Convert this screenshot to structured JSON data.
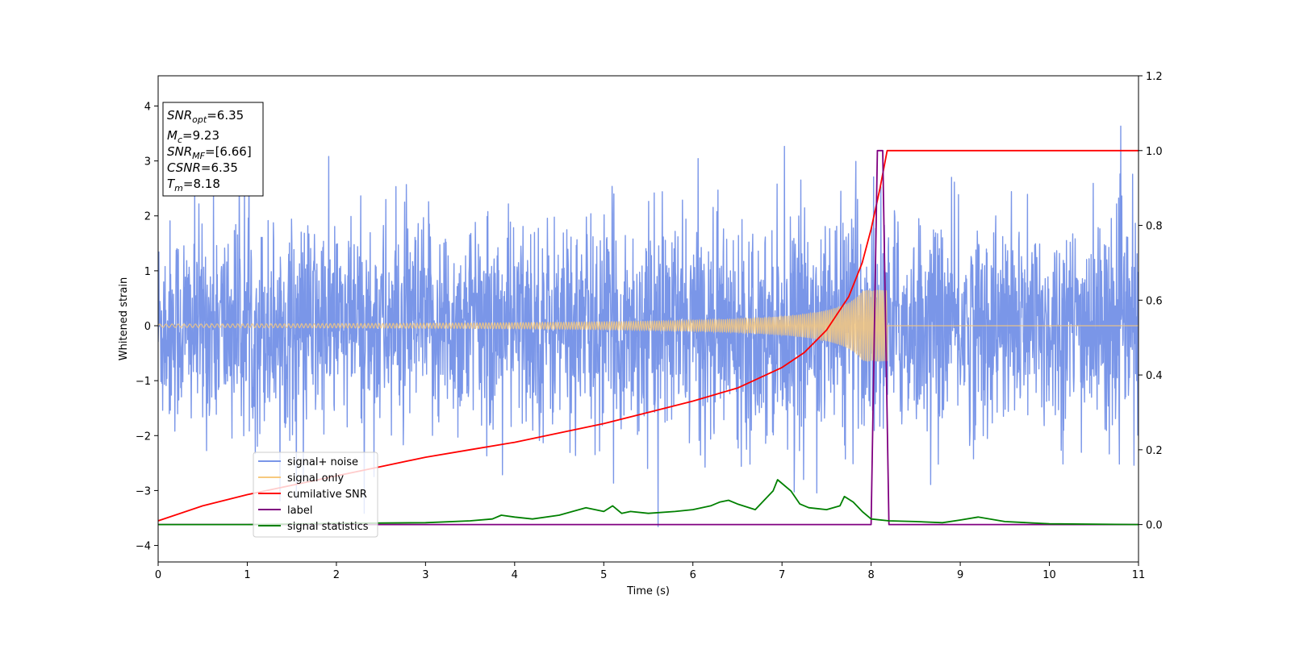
{
  "chart_data": {
    "type": "line",
    "title": "",
    "xlabel": "Time (s)",
    "ylabel": "Whitened strain",
    "y2label": "",
    "xlim": [
      0,
      11
    ],
    "ylim": [
      -4.3,
      4.55
    ],
    "y2lim": [
      -0.1,
      1.2
    ],
    "x_ticks": [
      0,
      1,
      2,
      3,
      4,
      5,
      6,
      7,
      8,
      9,
      10,
      11
    ],
    "y_ticks": [
      -4,
      -3,
      -2,
      -1,
      0,
      1,
      2,
      3,
      4
    ],
    "y2_ticks": [
      "0.0",
      "0.2",
      "0.4",
      "0.6",
      "0.8",
      "1.0",
      "1.2"
    ],
    "grid": false,
    "legend_position": "lower-left",
    "annotation": {
      "lines": [
        {
          "base": "SNR",
          "sub": "opt",
          "value": "=6.35"
        },
        {
          "base": "M",
          "sub": "c",
          "value": "=9.23"
        },
        {
          "base": "SNR",
          "sub": "MF",
          "value": "=[6.66]"
        },
        {
          "base": "CSNR",
          "sub": "",
          "value": "=6.35"
        },
        {
          "base": "T",
          "sub": "m",
          "value": "=8.18"
        }
      ]
    },
    "series": [
      {
        "name": "signal+ noise",
        "axis": "left",
        "color": "#7a96e8",
        "description_kind": "noise",
        "noise_sigma": 0.95,
        "sample_rate_hz": 256,
        "signal_merger_time": 8.18
      },
      {
        "name": "signal only",
        "axis": "left",
        "color": "#f7c97e",
        "description_kind": "chirp",
        "start_amplitude": 0.03,
        "peak_amplitude": 0.65,
        "end_time": 8.18
      },
      {
        "name": "cumilative SNR",
        "axis": "right",
        "color": "#ff0000",
        "x": [
          0,
          0.5,
          1,
          1.5,
          2,
          2.5,
          3,
          3.5,
          4,
          4.5,
          5,
          5.5,
          6,
          6.5,
          7,
          7.25,
          7.5,
          7.75,
          7.9,
          8.0,
          8.1,
          8.18,
          8.2,
          9,
          10,
          11
        ],
        "y": [
          0.01,
          0.05,
          0.08,
          0.105,
          0.13,
          0.155,
          0.18,
          0.2,
          0.22,
          0.245,
          0.27,
          0.3,
          0.33,
          0.365,
          0.42,
          0.46,
          0.52,
          0.61,
          0.7,
          0.79,
          0.9,
          1.0,
          1.0,
          1.0,
          1.0,
          1.0
        ]
      },
      {
        "name": "label",
        "axis": "right",
        "color": "#800080",
        "x": [
          0,
          8.0,
          8.07,
          8.13,
          8.2,
          11
        ],
        "y": [
          0,
          0,
          1,
          1,
          0,
          0
        ]
      },
      {
        "name": "signal statistics",
        "axis": "right",
        "color": "#008000",
        "x": [
          0,
          1,
          2,
          3,
          3.5,
          3.75,
          3.85,
          4.0,
          4.2,
          4.5,
          4.8,
          5.0,
          5.1,
          5.2,
          5.3,
          5.5,
          5.8,
          6.0,
          6.2,
          6.3,
          6.4,
          6.5,
          6.7,
          6.9,
          6.95,
          7.1,
          7.2,
          7.3,
          7.5,
          7.65,
          7.7,
          7.8,
          7.9,
          8.0,
          8.2,
          8.5,
          8.8,
          9.0,
          9.2,
          9.5,
          10,
          11
        ],
        "y": [
          0.0,
          0.0,
          0.003,
          0.005,
          0.01,
          0.015,
          0.025,
          0.02,
          0.015,
          0.025,
          0.045,
          0.035,
          0.05,
          0.03,
          0.035,
          0.03,
          0.035,
          0.04,
          0.05,
          0.06,
          0.065,
          0.055,
          0.04,
          0.09,
          0.12,
          0.09,
          0.055,
          0.045,
          0.04,
          0.05,
          0.075,
          0.06,
          0.035,
          0.015,
          0.01,
          0.008,
          0.005,
          0.012,
          0.02,
          0.008,
          0.002,
          0.0
        ]
      }
    ]
  }
}
